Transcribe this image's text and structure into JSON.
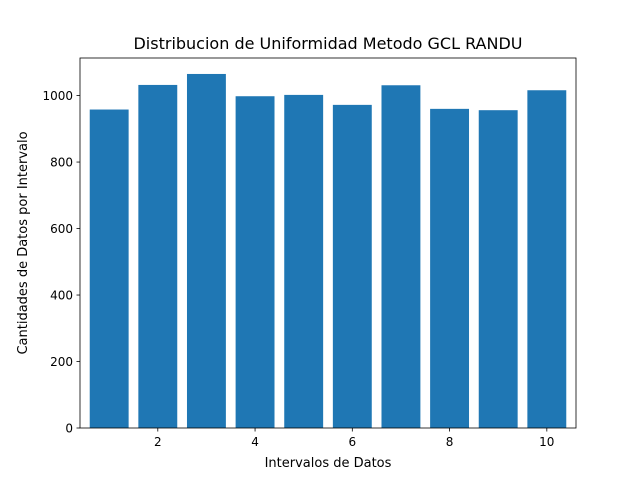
{
  "chart_data": {
    "type": "bar",
    "title": "Distribucion de Uniformidad Metodo GCL RANDU",
    "xlabel": "Intervalos de Datos",
    "ylabel": "Cantidades de Datos por Intervalo",
    "x": [
      1,
      2,
      3,
      4,
      5,
      6,
      7,
      8,
      9,
      10
    ],
    "values": [
      958,
      1032,
      1065,
      998,
      1002,
      972,
      1031,
      960,
      956,
      1016
    ],
    "xlim": [
      0.4,
      10.6
    ],
    "ylim": [
      0,
      1113
    ],
    "xticks": [
      2,
      4,
      6,
      8,
      10
    ],
    "yticks": [
      0,
      200,
      400,
      600,
      800,
      1000
    ],
    "bar_color": "#1f77b4",
    "grid": false
  }
}
